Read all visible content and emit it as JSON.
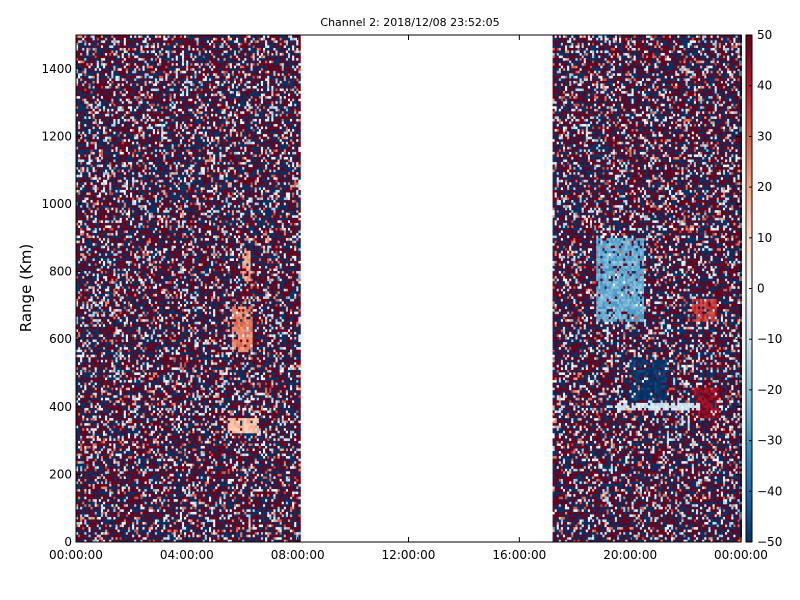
{
  "chart_data": {
    "type": "heatmap",
    "title": "Channel 2: 2018/12/08 23:52:05",
    "xlabel": "",
    "ylabel": "Range (Km)",
    "x_ticks": [
      "00:00:00",
      "04:00:00",
      "08:00:00",
      "12:00:00",
      "16:00:00",
      "20:00:00",
      "00:00:00"
    ],
    "x_range_hours": [
      0,
      24
    ],
    "y_ticks": [
      0,
      200,
      400,
      600,
      800,
      1000,
      1200,
      1400
    ],
    "ylim": [
      0,
      1500
    ],
    "colorbar": {
      "ticks": [
        50,
        40,
        30,
        20,
        10,
        0,
        -10,
        -20,
        -30,
        -40,
        -50
      ],
      "range": [
        -50,
        50
      ],
      "colormap": "RdBu_r",
      "colors": [
        "#053061",
        "#2166ac",
        "#4393c3",
        "#92c5de",
        "#d1e5f0",
        "#f7f7f7",
        "#fddbc7",
        "#f4a582",
        "#d6604d",
        "#b2182b",
        "#67001f"
      ]
    },
    "data_segments_hours": [
      [
        0,
        8.05
      ],
      [
        17.2,
        24
      ]
    ],
    "coherent_features": [
      {
        "t_start": 5.6,
        "t_end": 6.4,
        "r_start": 560,
        "r_end": 700,
        "value": 25
      },
      {
        "t_start": 6.0,
        "t_end": 6.3,
        "r_start": 770,
        "r_end": 860,
        "value": 20
      },
      {
        "t_start": 5.5,
        "t_end": 6.6,
        "r_start": 320,
        "r_end": 370,
        "value": 15
      },
      {
        "t_start": 20.0,
        "t_end": 21.3,
        "r_start": 420,
        "r_end": 540,
        "value": -50
      },
      {
        "t_start": 22.3,
        "t_end": 23.2,
        "r_start": 370,
        "r_end": 460,
        "value": 45
      },
      {
        "t_start": 22.2,
        "t_end": 23.1,
        "r_start": 650,
        "r_end": 720,
        "value": 35
      },
      {
        "t_start": 18.8,
        "t_end": 20.5,
        "r_start": 650,
        "r_end": 900,
        "value": -25
      },
      {
        "t_start": 19.5,
        "t_end": 22.5,
        "r_start": 390,
        "r_end": 410,
        "value": -10
      }
    ]
  }
}
